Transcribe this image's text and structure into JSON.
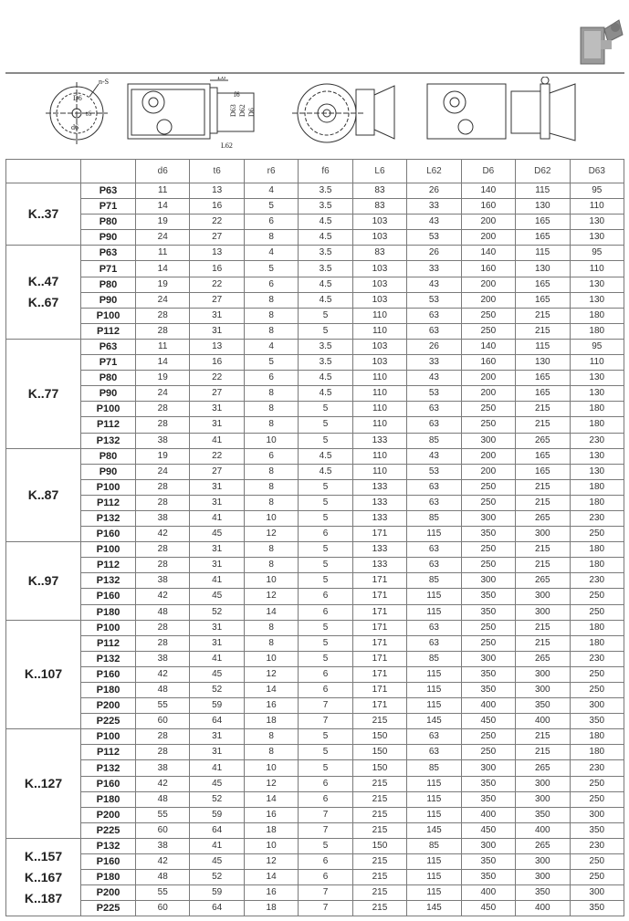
{
  "drawing_labels": {
    "ns": "n-S",
    "d6_small": "D6",
    "t6": "t6",
    "d6": "d6",
    "l6": "L6",
    "f6": "f6",
    "d63": "D63",
    "d62": "D62",
    "D6": "D6",
    "l62": "L62"
  },
  "table": {
    "columns": [
      "",
      "",
      "d6",
      "t6",
      "r6",
      "f6",
      "L6",
      "L62",
      "D6",
      "D62",
      "D63"
    ],
    "groups": [
      {
        "model": [
          "K..37"
        ],
        "rows": [
          [
            "P63",
            "11",
            "13",
            "4",
            "3.5",
            "83",
            "26",
            "140",
            "115",
            "95"
          ],
          [
            "P71",
            "14",
            "16",
            "5",
            "3.5",
            "83",
            "33",
            "160",
            "130",
            "110"
          ],
          [
            "P80",
            "19",
            "22",
            "6",
            "4.5",
            "103",
            "43",
            "200",
            "165",
            "130"
          ],
          [
            "P90",
            "24",
            "27",
            "8",
            "4.5",
            "103",
            "53",
            "200",
            "165",
            "130"
          ]
        ]
      },
      {
        "model": [
          "K..47",
          "K..67"
        ],
        "rows": [
          [
            "P63",
            "11",
            "13",
            "4",
            "3.5",
            "83",
            "26",
            "140",
            "115",
            "95"
          ],
          [
            "P71",
            "14",
            "16",
            "5",
            "3.5",
            "103",
            "33",
            "160",
            "130",
            "110"
          ],
          [
            "P80",
            "19",
            "22",
            "6",
            "4.5",
            "103",
            "43",
            "200",
            "165",
            "130"
          ],
          [
            "P90",
            "24",
            "27",
            "8",
            "4.5",
            "103",
            "53",
            "200",
            "165",
            "130"
          ],
          [
            "P100",
            "28",
            "31",
            "8",
            "5",
            "110",
            "63",
            "250",
            "215",
            "180"
          ],
          [
            "P112",
            "28",
            "31",
            "8",
            "5",
            "110",
            "63",
            "250",
            "215",
            "180"
          ]
        ]
      },
      {
        "model": [
          "K..77"
        ],
        "rows": [
          [
            "P63",
            "11",
            "13",
            "4",
            "3.5",
            "103",
            "26",
            "140",
            "115",
            "95"
          ],
          [
            "P71",
            "14",
            "16",
            "5",
            "3.5",
            "103",
            "33",
            "160",
            "130",
            "110"
          ],
          [
            "P80",
            "19",
            "22",
            "6",
            "4.5",
            "110",
            "43",
            "200",
            "165",
            "130"
          ],
          [
            "P90",
            "24",
            "27",
            "8",
            "4.5",
            "110",
            "53",
            "200",
            "165",
            "130"
          ],
          [
            "P100",
            "28",
            "31",
            "8",
            "5",
            "110",
            "63",
            "250",
            "215",
            "180"
          ],
          [
            "P112",
            "28",
            "31",
            "8",
            "5",
            "110",
            "63",
            "250",
            "215",
            "180"
          ],
          [
            "P132",
            "38",
            "41",
            "10",
            "5",
            "133",
            "85",
            "300",
            "265",
            "230"
          ]
        ]
      },
      {
        "model": [
          "K..87"
        ],
        "rows": [
          [
            "P80",
            "19",
            "22",
            "6",
            "4.5",
            "110",
            "43",
            "200",
            "165",
            "130"
          ],
          [
            "P90",
            "24",
            "27",
            "8",
            "4.5",
            "110",
            "53",
            "200",
            "165",
            "130"
          ],
          [
            "P100",
            "28",
            "31",
            "8",
            "5",
            "133",
            "63",
            "250",
            "215",
            "180"
          ],
          [
            "P112",
            "28",
            "31",
            "8",
            "5",
            "133",
            "63",
            "250",
            "215",
            "180"
          ],
          [
            "P132",
            "38",
            "41",
            "10",
            "5",
            "133",
            "85",
            "300",
            "265",
            "230"
          ],
          [
            "P160",
            "42",
            "45",
            "12",
            "6",
            "171",
            "115",
            "350",
            "300",
            "250"
          ]
        ]
      },
      {
        "model": [
          "K..97"
        ],
        "rows": [
          [
            "P100",
            "28",
            "31",
            "8",
            "5",
            "133",
            "63",
            "250",
            "215",
            "180"
          ],
          [
            "P112",
            "28",
            "31",
            "8",
            "5",
            "133",
            "63",
            "250",
            "215",
            "180"
          ],
          [
            "P132",
            "38",
            "41",
            "10",
            "5",
            "171",
            "85",
            "300",
            "265",
            "230"
          ],
          [
            "P160",
            "42",
            "45",
            "12",
            "6",
            "171",
            "115",
            "350",
            "300",
            "250"
          ],
          [
            "P180",
            "48",
            "52",
            "14",
            "6",
            "171",
            "115",
            "350",
            "300",
            "250"
          ]
        ]
      },
      {
        "model": [
          "K..107"
        ],
        "rows": [
          [
            "P100",
            "28",
            "31",
            "8",
            "5",
            "171",
            "63",
            "250",
            "215",
            "180"
          ],
          [
            "P112",
            "28",
            "31",
            "8",
            "5",
            "171",
            "63",
            "250",
            "215",
            "180"
          ],
          [
            "P132",
            "38",
            "41",
            "10",
            "5",
            "171",
            "85",
            "300",
            "265",
            "230"
          ],
          [
            "P160",
            "42",
            "45",
            "12",
            "6",
            "171",
            "115",
            "350",
            "300",
            "250"
          ],
          [
            "P180",
            "48",
            "52",
            "14",
            "6",
            "171",
            "115",
            "350",
            "300",
            "250"
          ],
          [
            "P200",
            "55",
            "59",
            "16",
            "7",
            "171",
            "115",
            "400",
            "350",
            "300"
          ],
          [
            "P225",
            "60",
            "64",
            "18",
            "7",
            "215",
            "145",
            "450",
            "400",
            "350"
          ]
        ]
      },
      {
        "model": [
          "K..127"
        ],
        "rows": [
          [
            "P100",
            "28",
            "31",
            "8",
            "5",
            "150",
            "63",
            "250",
            "215",
            "180"
          ],
          [
            "P112",
            "28",
            "31",
            "8",
            "5",
            "150",
            "63",
            "250",
            "215",
            "180"
          ],
          [
            "P132",
            "38",
            "41",
            "10",
            "5",
            "150",
            "85",
            "300",
            "265",
            "230"
          ],
          [
            "P160",
            "42",
            "45",
            "12",
            "6",
            "215",
            "115",
            "350",
            "300",
            "250"
          ],
          [
            "P180",
            "48",
            "52",
            "14",
            "6",
            "215",
            "115",
            "350",
            "300",
            "250"
          ],
          [
            "P200",
            "55",
            "59",
            "16",
            "7",
            "215",
            "115",
            "400",
            "350",
            "300"
          ],
          [
            "P225",
            "60",
            "64",
            "18",
            "7",
            "215",
            "145",
            "450",
            "400",
            "350"
          ]
        ]
      },
      {
        "model": [
          "K..157",
          "K..167",
          "K..187"
        ],
        "rows": [
          [
            "P132",
            "38",
            "41",
            "10",
            "5",
            "150",
            "85",
            "300",
            "265",
            "230"
          ],
          [
            "P160",
            "42",
            "45",
            "12",
            "6",
            "215",
            "115",
            "350",
            "300",
            "250"
          ],
          [
            "P180",
            "48",
            "52",
            "14",
            "6",
            "215",
            "115",
            "350",
            "300",
            "250"
          ],
          [
            "P200",
            "55",
            "59",
            "16",
            "7",
            "215",
            "115",
            "400",
            "350",
            "300"
          ],
          [
            "P225",
            "60",
            "64",
            "18",
            "7",
            "215",
            "145",
            "450",
            "400",
            "350"
          ]
        ]
      }
    ]
  }
}
